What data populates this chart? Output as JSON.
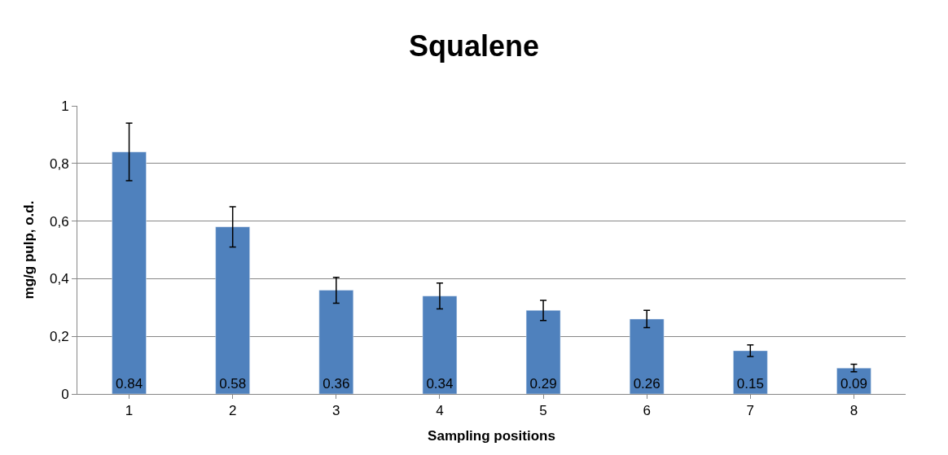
{
  "chart_data": {
    "type": "bar",
    "title": "Squalene",
    "xlabel": "Sampling positions",
    "ylabel": "mg/g pulp, o.d.",
    "categories": [
      "1",
      "2",
      "3",
      "4",
      "5",
      "6",
      "7",
      "8"
    ],
    "values": [
      0.84,
      0.58,
      0.36,
      0.34,
      0.29,
      0.26,
      0.15,
      0.09
    ],
    "errors": [
      0.1,
      0.07,
      0.045,
      0.045,
      0.035,
      0.03,
      0.02,
      0.013
    ],
    "color": "#4f81bd",
    "ylim": [
      0,
      1
    ],
    "yticks": [
      0,
      {
        "value": 0.2,
        "label": "0,2"
      },
      {
        "value": 0.4,
        "label": "0,4"
      },
      {
        "value": 0.6,
        "label": "0,6"
      },
      {
        "value": 0.8,
        "label": "0,8"
      },
      1
    ],
    "grid": "y",
    "data_labels": true
  }
}
